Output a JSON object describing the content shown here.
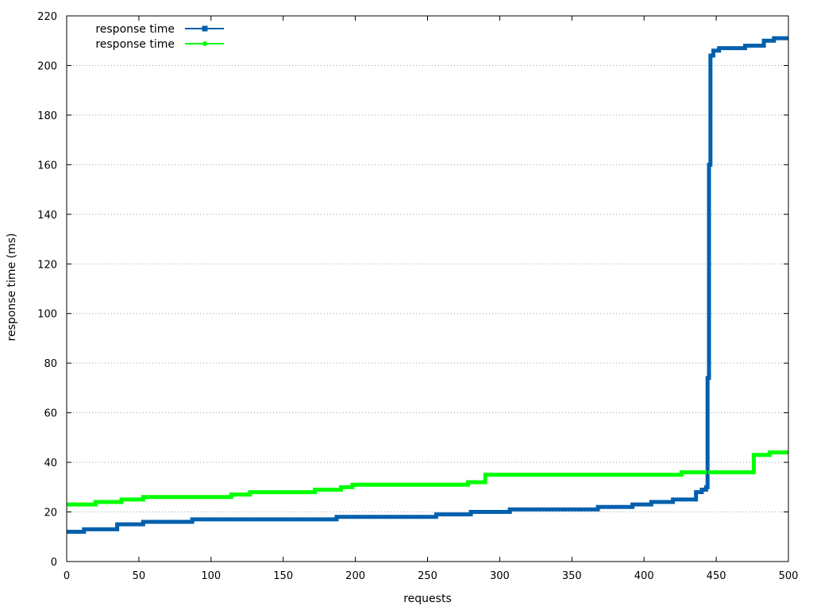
{
  "chart_data": {
    "type": "line",
    "title": "",
    "xlabel": "requests",
    "ylabel": "response time (ms)",
    "xlim": [
      0,
      500
    ],
    "ylim": [
      0,
      220
    ],
    "x_ticks": [
      0,
      50,
      100,
      150,
      200,
      250,
      300,
      350,
      400,
      450,
      500
    ],
    "y_ticks": [
      0,
      20,
      40,
      60,
      80,
      100,
      120,
      140,
      160,
      180,
      200,
      220
    ],
    "grid": "horizontal dotted",
    "legend_position": "top-left",
    "series": [
      {
        "name": "response time",
        "color": "#0060ad",
        "marker": "square",
        "step_points": [
          [
            0,
            12
          ],
          [
            12,
            13
          ],
          [
            35,
            15
          ],
          [
            53,
            16
          ],
          [
            87,
            17
          ],
          [
            187,
            18
          ],
          [
            256,
            19
          ],
          [
            280,
            20
          ],
          [
            307,
            21
          ],
          [
            368,
            22
          ],
          [
            392,
            23
          ],
          [
            405,
            24
          ],
          [
            420,
            25
          ],
          [
            436,
            28
          ],
          [
            440,
            29
          ],
          [
            443,
            30
          ],
          [
            444,
            74
          ],
          [
            445,
            160
          ],
          [
            446,
            204
          ],
          [
            448,
            206
          ],
          [
            452,
            207
          ],
          [
            470,
            208
          ],
          [
            483,
            210
          ],
          [
            490,
            211
          ],
          [
            500,
            211
          ]
        ]
      },
      {
        "name": "response time",
        "color": "#00ff00",
        "marker": "circle",
        "step_points": [
          [
            0,
            23
          ],
          [
            20,
            24
          ],
          [
            38,
            25
          ],
          [
            53,
            26
          ],
          [
            114,
            27
          ],
          [
            127,
            28
          ],
          [
            172,
            29
          ],
          [
            190,
            30
          ],
          [
            198,
            31
          ],
          [
            278,
            32
          ],
          [
            290,
            35
          ],
          [
            426,
            36
          ],
          [
            476,
            43
          ],
          [
            487,
            44
          ],
          [
            500,
            44
          ]
        ]
      }
    ]
  }
}
